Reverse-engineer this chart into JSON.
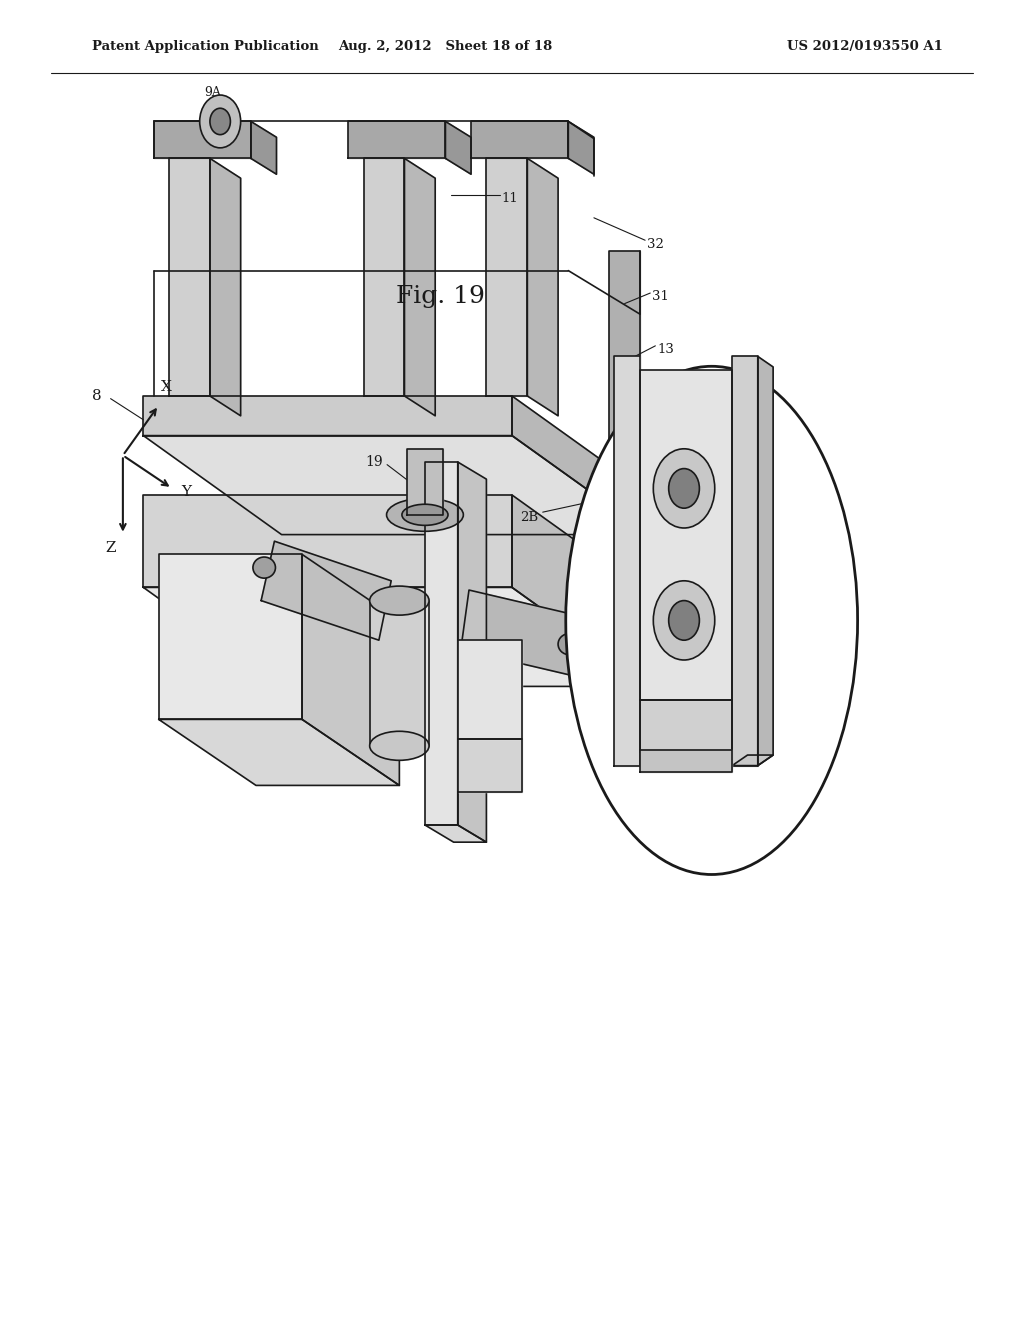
{
  "bg_color": "#ffffff",
  "line_color": "#1a1a1a",
  "header_left": "Patent Application Publication",
  "header_mid": "Aug. 2, 2012   Sheet 18 of 18",
  "header_right": "US 2012/0193550 A1",
  "fig_label": "Fig. 19"
}
